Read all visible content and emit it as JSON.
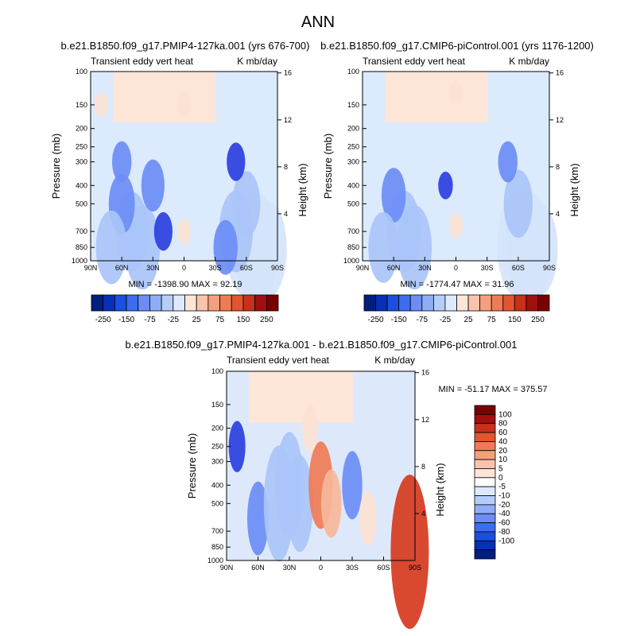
{
  "page_title": "ANN",
  "chart_data": [
    {
      "type": "heatmap",
      "title": "b.e21.B1850.f09_g17.PMIP4-127ka.001 (yrs 676-700)",
      "subtitle_left": "Transient eddy vert heat",
      "subtitle_right": "K mb/day",
      "ylabel": "Pressure (mb)",
      "ylabel_right": "Height (km)",
      "x_ticks": [
        "90N",
        "60N",
        "30N",
        "0",
        "30S",
        "60S",
        "90S"
      ],
      "y_ticks": [
        "100",
        "150",
        "200",
        "250",
        "300",
        "400",
        "500",
        "700",
        "850",
        "1000"
      ],
      "y_ticks_right": [
        "16",
        "12",
        "8",
        "4"
      ],
      "min_max_label": "MIN = -1398.90   MAX =  92.19",
      "colorbar_levels": [
        "-250",
        "-150",
        "-75",
        "-25",
        "25",
        "75",
        "150",
        "250"
      ],
      "colorbar_orientation": "horizontal",
      "min": -1398.9,
      "max": 92.19,
      "cells": [
        {
          "lat": -80,
          "p": 870,
          "v": -280
        },
        {
          "lat": -70,
          "p": 850,
          "v": -320
        },
        {
          "lat": -60,
          "p": 820,
          "v": -300
        },
        {
          "lat": -60,
          "p": 500,
          "v": -160
        },
        {
          "lat": -50,
          "p": 700,
          "v": -220
        },
        {
          "lat": -50,
          "p": 300,
          "v": -60
        },
        {
          "lat": -40,
          "p": 850,
          "v": -120
        },
        {
          "lat": 0,
          "p": 700,
          "v": 10
        },
        {
          "lat": 40,
          "p": 850,
          "v": -230
        },
        {
          "lat": 50,
          "p": 700,
          "v": -210
        },
        {
          "lat": 60,
          "p": 500,
          "v": -140
        },
        {
          "lat": 60,
          "p": 300,
          "v": -70
        },
        {
          "lat": 70,
          "p": 850,
          "v": -190
        },
        {
          "lat": 30,
          "p": 400,
          "v": -110
        },
        {
          "lat": 20,
          "p": 700,
          "v": -60
        },
        {
          "lat": 0,
          "p": 150,
          "v": 12
        },
        {
          "lat": 80,
          "p": 150,
          "v": 8
        }
      ]
    },
    {
      "type": "heatmap",
      "title": "b.e21.B1850.f09_g17.CMIP6-piControl.001 (yrs 1176-1200)",
      "subtitle_left": "Transient eddy vert heat",
      "subtitle_right": "K mb/day",
      "ylabel": "Pressure (mb)",
      "ylabel_right": "Height (km)",
      "x_ticks": [
        "90N",
        "60N",
        "30N",
        "0",
        "30S",
        "60S",
        "90S"
      ],
      "y_ticks": [
        "100",
        "150",
        "200",
        "250",
        "300",
        "400",
        "500",
        "700",
        "850",
        "1000"
      ],
      "y_ticks_right": [
        "16",
        "12",
        "8",
        "4"
      ],
      "min_max_label": "MIN = -1774.47   MAX =  31.96",
      "colorbar_levels": [
        "-250",
        "-150",
        "-75",
        "-25",
        "25",
        "75",
        "150",
        "250"
      ],
      "colorbar_orientation": "horizontal",
      "min": -1774.47,
      "max": 31.96,
      "cells": [
        {
          "lat": -80,
          "p": 870,
          "v": -260
        },
        {
          "lat": -70,
          "p": 850,
          "v": -330
        },
        {
          "lat": -60,
          "p": 820,
          "v": -310
        },
        {
          "lat": -60,
          "p": 500,
          "v": -170
        },
        {
          "lat": -50,
          "p": 300,
          "v": -70
        },
        {
          "lat": 40,
          "p": 850,
          "v": -230
        },
        {
          "lat": 50,
          "p": 700,
          "v": -220
        },
        {
          "lat": 60,
          "p": 450,
          "v": -120
        },
        {
          "lat": 70,
          "p": 850,
          "v": -180
        },
        {
          "lat": 0,
          "p": 650,
          "v": 8
        },
        {
          "lat": 10,
          "p": 400,
          "v": -20
        },
        {
          "lat": 0,
          "p": 130,
          "v": 10
        }
      ]
    },
    {
      "type": "heatmap",
      "title": "b.e21.B1850.f09_g17.PMIP4-127ka.001 - b.e21.B1850.f09_g17.CMIP6-piControl.001",
      "subtitle_left": "Transient eddy vert heat",
      "subtitle_right": "K mb/day",
      "ylabel": "Pressure (mb)",
      "ylabel_right": "Height (km)",
      "x_ticks": [
        "90N",
        "60N",
        "30N",
        "0",
        "30S",
        "60S",
        "90S"
      ],
      "y_ticks": [
        "100",
        "150",
        "200",
        "250",
        "300",
        "400",
        "500",
        "700",
        "850",
        "1000"
      ],
      "y_ticks_right": [
        "16",
        "12",
        "8",
        "4"
      ],
      "min_max_label": "MIN = -51.17   MAX = 375.57",
      "colorbar_levels": [
        "100",
        "80",
        "60",
        "40",
        "20",
        "10",
        "5",
        "0",
        "-5",
        "-10",
        "-20",
        "-40",
        "-60",
        "-80",
        "-100"
      ],
      "colorbar_orientation": "vertical",
      "min": -51.17,
      "max": 375.57,
      "cells": [
        {
          "lat": 60,
          "p": 600,
          "v": -18
        },
        {
          "lat": 40,
          "p": 500,
          "v": -40
        },
        {
          "lat": 30,
          "p": 400,
          "v": -35
        },
        {
          "lat": 20,
          "p": 500,
          "v": -30
        },
        {
          "lat": 0,
          "p": 400,
          "v": 25
        },
        {
          "lat": -10,
          "p": 500,
          "v": 15
        },
        {
          "lat": -30,
          "p": 400,
          "v": -15
        },
        {
          "lat": -45,
          "p": 600,
          "v": 8
        },
        {
          "lat": -85,
          "p": 900,
          "v": 60
        },
        {
          "lat": 80,
          "p": 250,
          "v": -6
        },
        {
          "lat": 10,
          "p": 200,
          "v": 4
        }
      ]
    }
  ],
  "colors": {
    "neg": [
      "#2b3fe0",
      "#6b8df5",
      "#a9c4f8",
      "#d4e4fb"
    ],
    "pos": [
      "#fbe2d3",
      "#f7b79a",
      "#ef7b55",
      "#d63a1e"
    ],
    "colorbar_h": [
      "#001f7f",
      "#0630b8",
      "#1a4fe0",
      "#3d6cf0",
      "#6b8df5",
      "#8fadf7",
      "#b6cdf9",
      "#dceafd",
      "#fde6d8",
      "#f9c4ab",
      "#f59f7e",
      "#ef7b55",
      "#e2552f",
      "#c9301a",
      "#a10f0f",
      "#7a0000"
    ],
    "colorbar_v": [
      "#7a0000",
      "#a10f0f",
      "#c9301a",
      "#e2552f",
      "#ef7b55",
      "#f59f7e",
      "#f9c4ab",
      "#fde6d8",
      "#ffffff",
      "#dceafd",
      "#b6cdf9",
      "#8fadf7",
      "#6b8df5",
      "#3d6cf0",
      "#1a4fe0",
      "#0630b8",
      "#001f7f"
    ]
  }
}
